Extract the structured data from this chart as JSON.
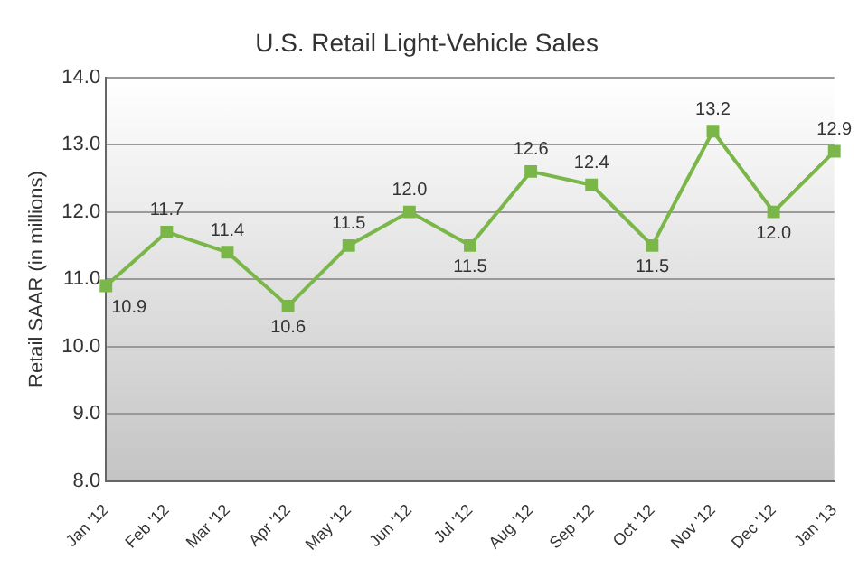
{
  "chart_data": {
    "type": "line",
    "title": "U.S. Retail Light-Vehicle Sales",
    "ylabel": "Retail SAAR (in millions)",
    "categories": [
      "Jan '12",
      "Feb '12",
      "Mar '12",
      "Apr '12",
      "May '12",
      "Jun '12",
      "Jul '12",
      "Aug '12",
      "Sep '12",
      "Oct '12",
      "Nov '12",
      "Dec '12",
      "Jan '13"
    ],
    "series": [
      {
        "color": "#7ab648",
        "values": [
          10.9,
          11.7,
          11.4,
          10.6,
          11.5,
          12.0,
          11.5,
          12.6,
          12.4,
          11.5,
          13.2,
          12.0,
          12.9
        ],
        "value_labels": [
          "10.9",
          "11.7",
          "11.4",
          "10.6",
          "11.5",
          "12.0",
          "11.5",
          "12.6",
          "12.4",
          "11.5",
          "13.2",
          "12.0",
          "12.9"
        ]
      }
    ],
    "ylim": [
      8,
      14
    ],
    "yticks": [
      {
        "value": 8,
        "label": "8.0"
      },
      {
        "value": 9,
        "label": "9.0"
      },
      {
        "value": 10,
        "label": "10.0"
      },
      {
        "value": 11,
        "label": "11.0"
      },
      {
        "value": 12,
        "label": "12.0"
      },
      {
        "value": 13,
        "label": "13.0"
      },
      {
        "value": 14,
        "label": "14.0"
      }
    ],
    "grid": "y",
    "legend": false,
    "marker": "square",
    "line_style": "solid"
  }
}
